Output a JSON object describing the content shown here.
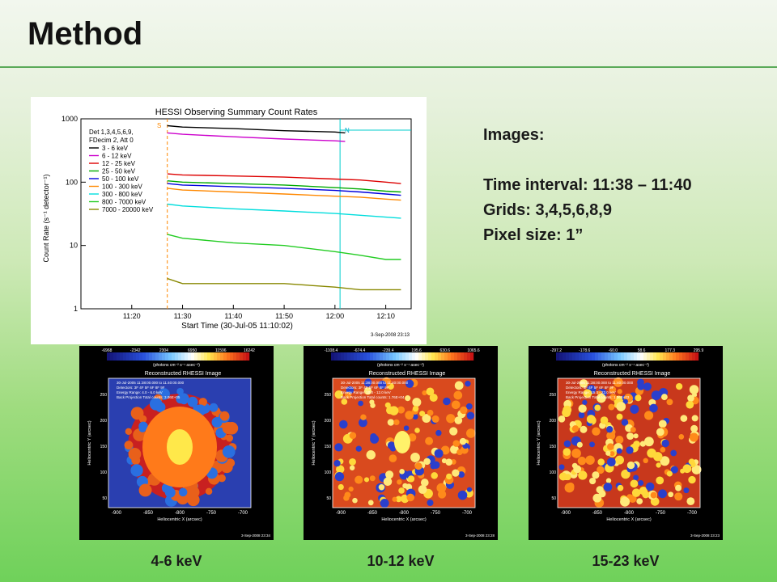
{
  "slide": {
    "title": "Method"
  },
  "info": {
    "heading": "Images:",
    "time_interval": "Time interval: 11:38 – 11:40",
    "grids": "Grids: 3,4,5,6,8,9",
    "pixel_size": "Pixel size: 1”"
  },
  "summary_plot": {
    "title": "HESSI Observing Summary Count Rates",
    "ylabel": "Count Rate (s⁻¹ detector⁻¹)",
    "xlabel": "Start Time (30-Jul-05 11:10:02)",
    "x_ticks": [
      "11:20",
      "11:30",
      "11:40",
      "11:50",
      "12:00",
      "12:10"
    ],
    "y_ticks": [
      "1000",
      "100",
      "10",
      "1"
    ],
    "legend_header": [
      "Det 1,3,4,5,6,9,",
      "FDecim 2, Att 0"
    ],
    "markers": {
      "s": "S",
      "n": "N"
    },
    "date_stamp": "3-Sep-2008 23:13"
  },
  "chart_data": {
    "type": "line",
    "title": "HESSI Observing Summary Count Rates",
    "xlabel": "Start Time (30-Jul-05 11:10:02)",
    "ylabel": "Count Rate (s⁻¹ detector⁻¹)",
    "y_scale": "log",
    "xlim": [
      "11:10",
      "12:15"
    ],
    "ylim": [
      1,
      1000
    ],
    "legend_position": "top-left",
    "series": [
      {
        "name": "3 - 6 keV",
        "color": "#000000",
        "x": [
          "11:27",
          "11:30",
          "11:40",
          "11:50",
          "12:00",
          "12:02"
        ],
        "y": [
          780,
          740,
          700,
          650,
          620,
          600
        ]
      },
      {
        "name": "6 - 12 keV",
        "color": "#cc00cc",
        "x": [
          "11:27",
          "11:30",
          "11:40",
          "11:50",
          "12:00",
          "12:02"
        ],
        "y": [
          600,
          570,
          520,
          480,
          450,
          440
        ]
      },
      {
        "name": "12 - 25 keV",
        "color": "#dd0000",
        "x": [
          "11:27",
          "11:30",
          "11:40",
          "11:50",
          "12:00",
          "12:05",
          "12:10",
          "12:13"
        ],
        "y": [
          135,
          130,
          125,
          120,
          112,
          108,
          100,
          95
        ]
      },
      {
        "name": "25 - 50 keV",
        "color": "#00aa00",
        "x": [
          "11:27",
          "11:30",
          "11:40",
          "11:50",
          "12:00",
          "12:05",
          "12:10",
          "12:13"
        ],
        "y": [
          105,
          100,
          95,
          90,
          82,
          78,
          72,
          70
        ]
      },
      {
        "name": "50 - 100 keV",
        "color": "#0000dd",
        "x": [
          "11:27",
          "11:30",
          "11:40",
          "11:50",
          "12:00",
          "12:05",
          "12:10",
          "12:13"
        ],
        "y": [
          95,
          90,
          85,
          80,
          74,
          70,
          65,
          62
        ]
      },
      {
        "name": "100 - 300 keV",
        "color": "#ff8800",
        "x": [
          "11:27",
          "11:30",
          "11:40",
          "11:50",
          "12:00",
          "12:05",
          "12:10",
          "12:13"
        ],
        "y": [
          80,
          75,
          70,
          65,
          60,
          58,
          54,
          52
        ]
      },
      {
        "name": "300 - 800 keV",
        "color": "#00dddd",
        "x": [
          "11:27",
          "11:30",
          "11:40",
          "11:50",
          "12:00",
          "12:05",
          "12:10",
          "12:13"
        ],
        "y": [
          45,
          42,
          38,
          35,
          32,
          30,
          28,
          27
        ]
      },
      {
        "name": "800 - 7000 keV",
        "color": "#22cc22",
        "x": [
          "11:27",
          "11:30",
          "11:40",
          "11:50",
          "12:00",
          "12:05",
          "12:10",
          "12:13"
        ],
        "y": [
          15,
          13,
          11,
          10,
          8,
          7,
          6,
          6
        ]
      },
      {
        "name": "7000 - 20000 keV",
        "color": "#888800",
        "x": [
          "11:27",
          "11:30",
          "11:40",
          "11:50",
          "12:00",
          "12:05",
          "12:10",
          "12:13"
        ],
        "y": [
          3,
          2.5,
          2.5,
          2.5,
          2.2,
          2.0,
          2.0,
          2.0
        ]
      }
    ]
  },
  "maps": [
    {
      "caption": "4-6 keV",
      "colorbar": [
        "-6968",
        "-2342",
        "2304",
        "6950",
        "11596",
        "16242"
      ],
      "plot_title": "Reconstructed RHESSI Image",
      "text": [
        "30-Jul-2005 11:38:00.000 to 11:40:00.000",
        "Detectors: 3F 4F 5F 6F 8F 9F",
        "Energy Range: 4.0 - 6.0 keV",
        "Back Projection    Total counts: 3.06E+05"
      ],
      "x_ticks": [
        "-900",
        "-850",
        "-800",
        "-750",
        "-700"
      ],
      "y_ticks": [
        "250",
        "200",
        "150",
        "100",
        "50"
      ],
      "stamp": "3-Sep-2008 23:34",
      "palette": "hot"
    },
    {
      "caption": "10-12 keV",
      "colorbar": [
        "-1108.4",
        "-674.4",
        "-239.4",
        "195.6",
        "630.6",
        "1065.6"
      ],
      "plot_title": "Reconstructed RHESSI Image",
      "text": [
        "30-Jul-2005 11:38:00.000 to 11:40:00.000",
        "Detectors: 3F 4F 5F 6F 8F 9F",
        "Energy Range: 10.0 - 12.0 keV",
        "Back Projection    Total counts: 1.76E+04"
      ],
      "x_ticks": [
        "-900",
        "-850",
        "-800",
        "-750",
        "-700"
      ],
      "y_ticks": [
        "250",
        "200",
        "150",
        "100",
        "50"
      ],
      "stamp": "3-Sep-2008 23:28",
      "palette": "warm"
    },
    {
      "caption": "15-23 keV",
      "colorbar": [
        "-297.2",
        "-178.6",
        "-60.0",
        "58.6",
        "177.3",
        "295.9"
      ],
      "plot_title": "Reconstructed RHESSI Image",
      "text": [
        "30-Jul-2005 11:38:00.000 to 11:40:00.000",
        "Detectors: 3F 4F 5F 6F 8F 9F",
        "Energy Range: 15.0 - 23.0 keV",
        "Back Projection    Total counts: 1.06E+03"
      ],
      "x_ticks": [
        "-900",
        "-850",
        "-800",
        "-750",
        "-700"
      ],
      "y_ticks": [
        "250",
        "200",
        "150",
        "100",
        "50"
      ],
      "stamp": "3-Sep-2008 23:23",
      "palette": "speckle"
    }
  ],
  "map_axes": {
    "xlabel": "Heliocentric X (arcsec)",
    "ylabel": "Heliocentric Y (arcsec)",
    "units": "(photons cm⁻² s⁻¹ asec⁻²)"
  }
}
